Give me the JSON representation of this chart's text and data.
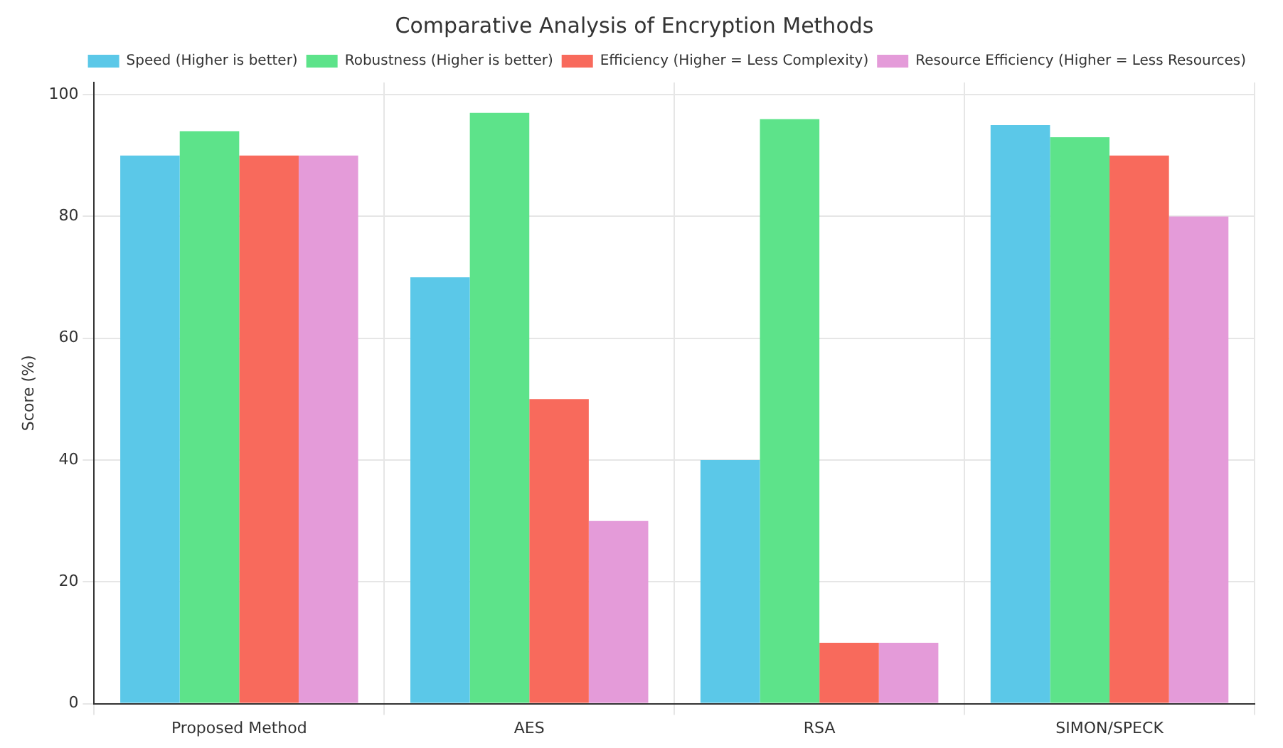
{
  "chart_data": {
    "type": "bar",
    "title": "Comparative Analysis of Encryption Methods",
    "ylabel": "Score (%)",
    "categories": [
      "Proposed Method",
      "AES",
      "RSA",
      "SIMON/SPECK"
    ],
    "series": [
      {
        "name": "Speed (Higher is better)",
        "color": "#5bc8e8",
        "values": [
          90,
          70,
          40,
          95
        ]
      },
      {
        "name": "Robustness (Higher is better)",
        "color": "#5de38a",
        "values": [
          94,
          97,
          96,
          93
        ]
      },
      {
        "name": "Efficiency (Higher = Less Complexity)",
        "color": "#f86a5c",
        "values": [
          90,
          50,
          10,
          90
        ]
      },
      {
        "name": "Resource Efficiency (Higher = Less Resources)",
        "color": "#e49bd9",
        "values": [
          90,
          30,
          10,
          80
        ]
      }
    ],
    "ylim": [
      0,
      102
    ],
    "yticks": [
      0,
      20,
      40,
      60,
      80,
      100
    ],
    "grid": true,
    "legend": "top right"
  }
}
